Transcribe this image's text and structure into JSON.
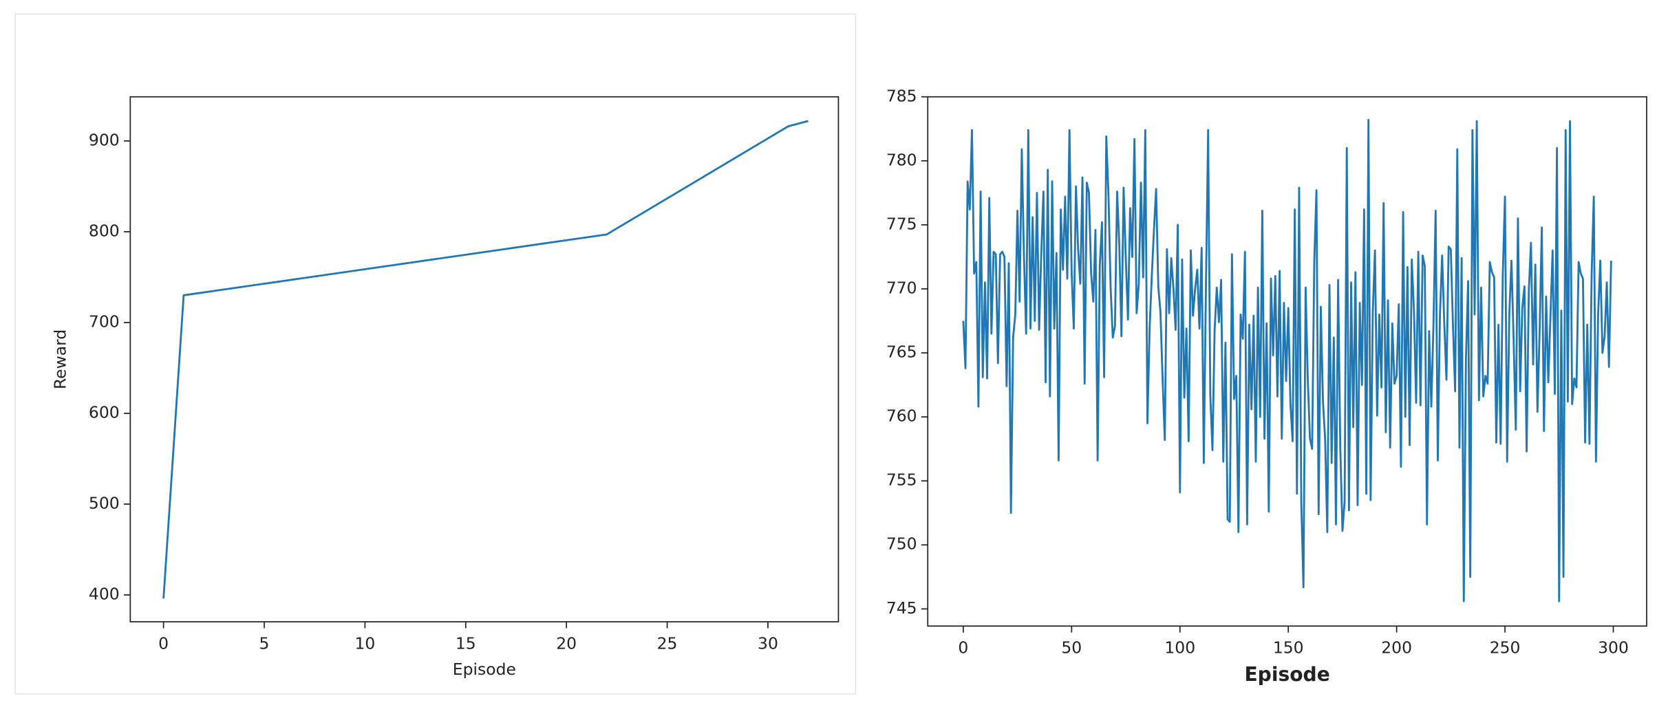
{
  "chart_data": [
    {
      "type": "line",
      "xlabel": "Episode",
      "ylabel": "Reward",
      "color": "#1f77b4",
      "x": [
        0,
        1,
        22,
        31,
        32
      ],
      "values": [
        396,
        730,
        797,
        916,
        922
      ],
      "xlim": [
        -1.65,
        33.5
      ],
      "ylim": [
        370.4,
        948.6
      ],
      "xticks": [
        0,
        5,
        10,
        15,
        20,
        25,
        30
      ],
      "yticks": [
        400,
        500,
        600,
        700,
        800,
        900
      ]
    },
    {
      "type": "line",
      "xlabel": "Episode",
      "color": "#1f77b4",
      "x": [
        0,
        1,
        2,
        3,
        4,
        5,
        6,
        7,
        8,
        9,
        10,
        11,
        12,
        13,
        14,
        15,
        16,
        17,
        18,
        19,
        20,
        21,
        22,
        23,
        24,
        25,
        26,
        27,
        28,
        29,
        30,
        31,
        32,
        33,
        34,
        35,
        36,
        37,
        38,
        39,
        40,
        41,
        42,
        43,
        44,
        45,
        46,
        47,
        48,
        49,
        50,
        51,
        52,
        53,
        54,
        55,
        56,
        57,
        58,
        59,
        60,
        61,
        62,
        63,
        64,
        65,
        66,
        67,
        68,
        69,
        70,
        71,
        72,
        73,
        74,
        75,
        76,
        77,
        78,
        79,
        80,
        81,
        82,
        83,
        84,
        85,
        86,
        87,
        88,
        89,
        90,
        91,
        92,
        93,
        94,
        95,
        96,
        97,
        98,
        99,
        100,
        101,
        102,
        103,
        104,
        105,
        106,
        107,
        108,
        109,
        110,
        111,
        112,
        113,
        114,
        115,
        116,
        117,
        118,
        119,
        120,
        121,
        122,
        123,
        124,
        125,
        126,
        127,
        128,
        129,
        130,
        131,
        132,
        133,
        134,
        135,
        136,
        137,
        138,
        139,
        140,
        141,
        142,
        143,
        144,
        145,
        146,
        147,
        148,
        149,
        150,
        151,
        152,
        153,
        154,
        155,
        156,
        157,
        158,
        159,
        160,
        161,
        162,
        163,
        164,
        165,
        166,
        167,
        168,
        169,
        170,
        171,
        172,
        173,
        174,
        175,
        176,
        177,
        178,
        179,
        180,
        181,
        182,
        183,
        184,
        185,
        186,
        187,
        188,
        189,
        190,
        191,
        192,
        193,
        194,
        195,
        196,
        197,
        198,
        199,
        200,
        201,
        202,
        203,
        204,
        205,
        206,
        207,
        208,
        209,
        210,
        211,
        212,
        213,
        214,
        215,
        216,
        217,
        218,
        219,
        220,
        221,
        222,
        223,
        224,
        225,
        226,
        227,
        228,
        229,
        230,
        231,
        232,
        233,
        234,
        235,
        236,
        237,
        238,
        239,
        240,
        241,
        242,
        243,
        244,
        245,
        246,
        247,
        248,
        249,
        250,
        251,
        252,
        253,
        254,
        255,
        256,
        257,
        258,
        259,
        260,
        261,
        262,
        263,
        264,
        265,
        266,
        267,
        268,
        269,
        270,
        271,
        272,
        273,
        274,
        275,
        276,
        277,
        278,
        279,
        280,
        281,
        282,
        283,
        284,
        285,
        286,
        287,
        288,
        289,
        290,
        291,
        292,
        293,
        294,
        295,
        296,
        297,
        298,
        299
      ],
      "values": [
        767.5,
        763.8,
        778.4,
        776.2,
        782.4,
        771.2,
        772.1,
        760.8,
        777.6,
        763.1,
        770.5,
        763.0,
        777.1,
        766.5,
        772.9,
        772.7,
        764.2,
        772.7,
        772.9,
        772.5,
        762.4,
        772.0,
        752.5,
        766.2,
        768.0,
        776.1,
        769.0,
        780.9,
        772.6,
        766.5,
        782.4,
        766.9,
        775.6,
        767.5,
        777.5,
        766.8,
        772.8,
        777.6,
        762.7,
        779.3,
        761.6,
        778.4,
        766.9,
        772.8,
        756.6,
        776.2,
        771.5,
        777.2,
        770.8,
        782.4,
        771.3,
        766.9,
        778.0,
        773.1,
        770.4,
        778.7,
        762.6,
        778.3,
        777.5,
        771.2,
        769.0,
        774.6,
        756.6,
        771.8,
        775.2,
        763.1,
        781.9,
        777.4,
        770.1,
        766.2,
        767.1,
        777.6,
        773.5,
        766.3,
        777.9,
        772.4,
        767.6,
        776.3,
        772.5,
        781.7,
        768.1,
        770.4,
        778.3,
        770.9,
        782.4,
        759.5,
        766.9,
        771.0,
        774.6,
        777.8,
        770.2,
        768.2,
        762.9,
        758.2,
        773.1,
        768.1,
        772.4,
        770.0,
        766.8,
        775.0,
        754.1,
        772.3,
        761.5,
        766.9,
        758.1,
        773.0,
        767.9,
        770.0,
        771.5,
        766.9,
        773.2,
        756.4,
        770.3,
        782.4,
        761.7,
        757.4,
        766.8,
        770.1,
        767.4,
        770.7,
        756.5,
        765.8,
        752.0,
        751.8,
        772.7,
        761.4,
        763.2,
        751.0,
        768.0,
        766.1,
        772.9,
        751.6,
        767.2,
        760.6,
        767.9,
        756.5,
        770.1,
        760.0,
        776.1,
        758.3,
        767.3,
        752.6,
        770.8,
        764.8,
        771.0,
        761.6,
        771.4,
        758.3,
        768.9,
        762.8,
        768.5,
        761.0,
        758.1,
        776.2,
        754.0,
        777.9,
        753.3,
        746.7,
        770.1,
        762.9,
        758.3,
        757.5,
        772.2,
        777.7,
        752.4,
        768.6,
        761.2,
        758.3,
        751.0,
        770.3,
        756.4,
        766.2,
        751.6,
        770.7,
        757.6,
        751.1,
        753.4,
        781.0,
        752.7,
        770.5,
        759.2,
        771.3,
        753.1,
        768.9,
        762.5,
        776.2,
        754.0,
        783.2,
        753.5,
        768.2,
        773.0,
        760.1,
        768.0,
        762.3,
        776.7,
        758.8,
        769.1,
        757.6,
        767.3,
        762.6,
        763.2,
        768.8,
        756.1,
        776.0,
        760.0,
        771.7,
        757.8,
        772.3,
        768.3,
        761.1,
        772.9,
        760.9,
        772.6,
        771.8,
        751.6,
        766.7,
        760.8,
        767.2,
        776.1,
        756.6,
        768.0,
        772.6,
        767.3,
        762.9,
        773.3,
        773.1,
        767.2,
        762.0,
        780.9,
        757.6,
        772.4,
        745.6,
        764.6,
        770.6,
        747.5,
        782.4,
        768.0,
        783.1,
        761.3,
        770.1,
        761.6,
        763.2,
        762.6,
        772.1,
        771.3,
        770.9,
        758.0,
        767.2,
        757.9,
        771.1,
        777.2,
        756.5,
        768.0,
        772.2,
        766.0,
        759.0,
        775.5,
        762.0,
        768.5,
        770.2,
        757.3,
        769.8,
        773.6,
        764.1,
        771.9,
        760.4,
        766.7,
        774.8,
        758.9,
        769.4,
        762.7,
        767.9,
        773.0,
        761.8,
        781.0,
        745.6,
        768.3,
        747.5,
        782.4,
        761.2,
        783.1,
        761.0,
        763.0,
        762.3,
        772.1,
        771.2,
        770.8,
        758.0,
        767.2,
        757.9,
        771.1,
        777.2,
        756.5,
        768.0,
        772.2,
        765.0,
        766.3,
        770.5,
        763.9,
        772.2
      ],
      "xlim": [
        -16.4,
        315.4
      ],
      "ylim": [
        743.66,
        785
      ],
      "xticks": [
        0,
        50,
        100,
        150,
        200,
        250,
        300
      ],
      "yticks": [
        745,
        750,
        755,
        760,
        765,
        770,
        775,
        780,
        785
      ]
    }
  ]
}
